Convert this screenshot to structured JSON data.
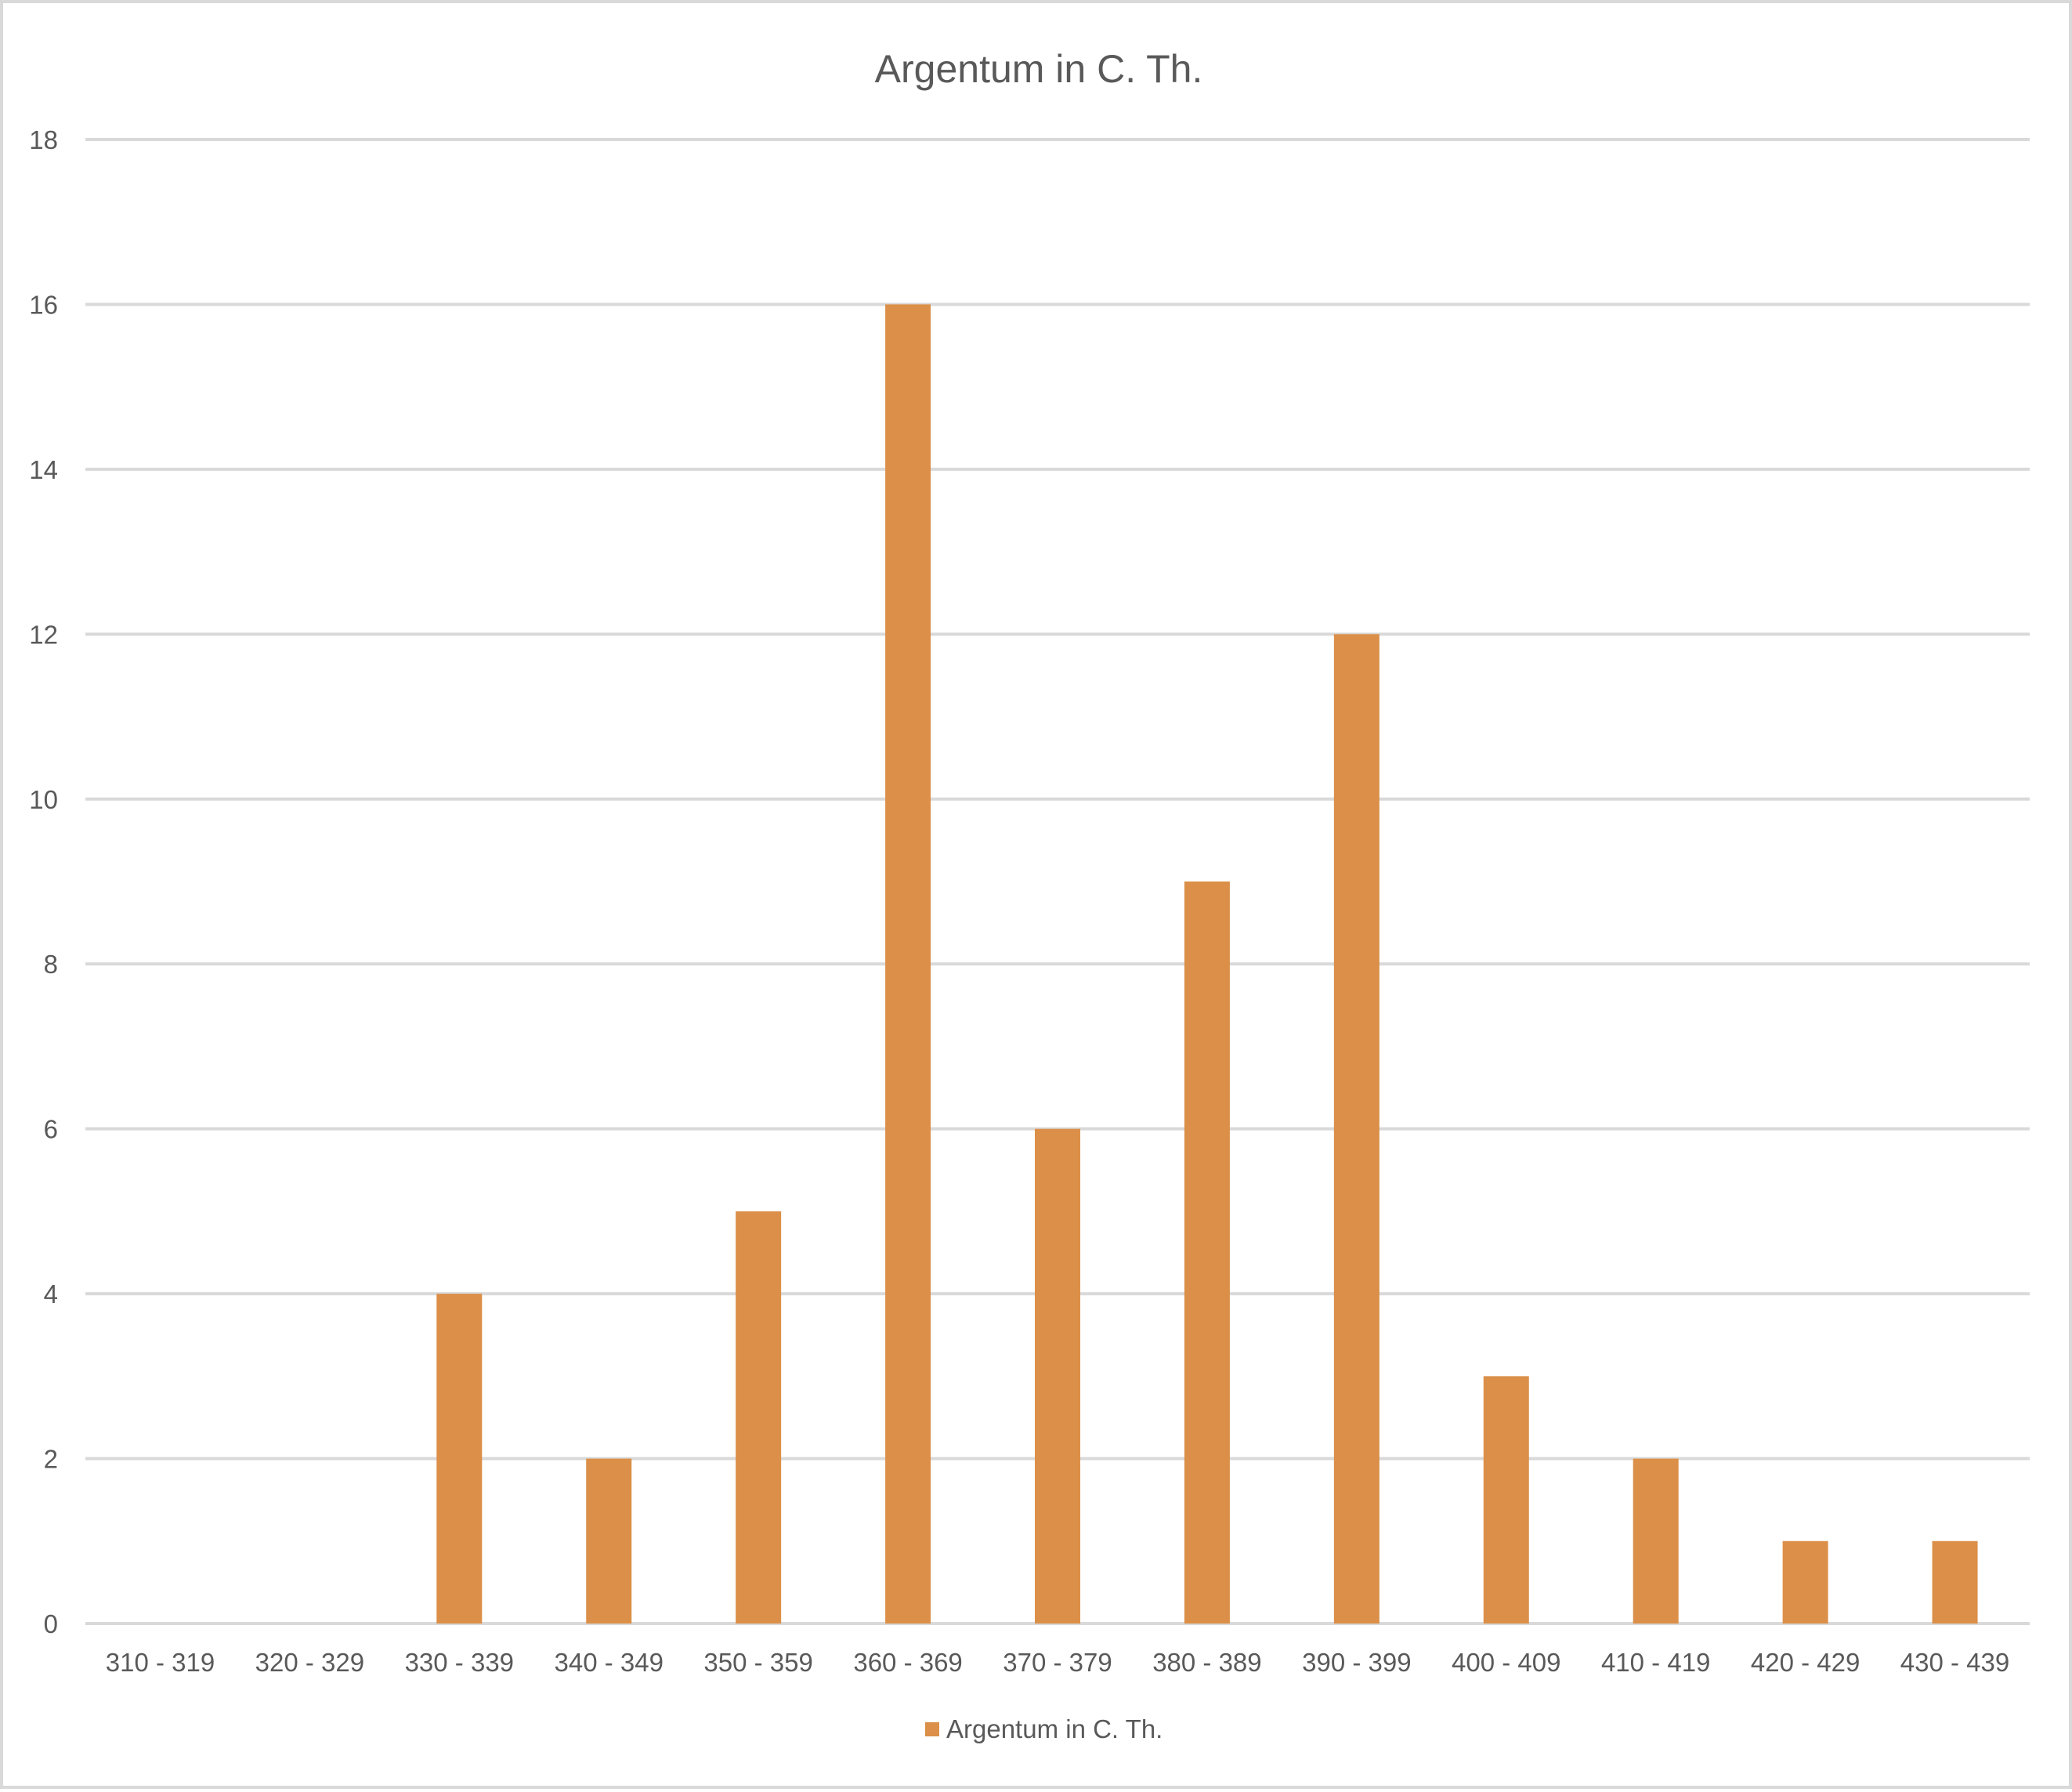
{
  "chart_data": {
    "type": "bar",
    "title": "Argentum in C. Th.",
    "xlabel": "",
    "ylabel": "",
    "categories": [
      "310 - 319",
      "320 - 329",
      "330 - 339",
      "340 - 349",
      "350 - 359",
      "360 - 369",
      "370 - 379",
      "380 - 389",
      "390 - 399",
      "400 - 409",
      "410 - 419",
      "420 - 429",
      "430 - 439"
    ],
    "series": [
      {
        "name": "Argentum in C. Th.",
        "values": [
          0,
          0,
          4,
          2,
          5,
          16,
          6,
          9,
          12,
          3,
          2,
          1,
          1
        ],
        "color": "#db8f48"
      }
    ],
    "ylim": [
      0,
      18
    ],
    "yticks": [
      0,
      2,
      4,
      6,
      8,
      10,
      12,
      14,
      16,
      18
    ],
    "grid": true,
    "legend": "bottom",
    "colors": {
      "gridline": "#d9d9d9",
      "text": "#595959",
      "border": "#d9d9d9"
    }
  }
}
